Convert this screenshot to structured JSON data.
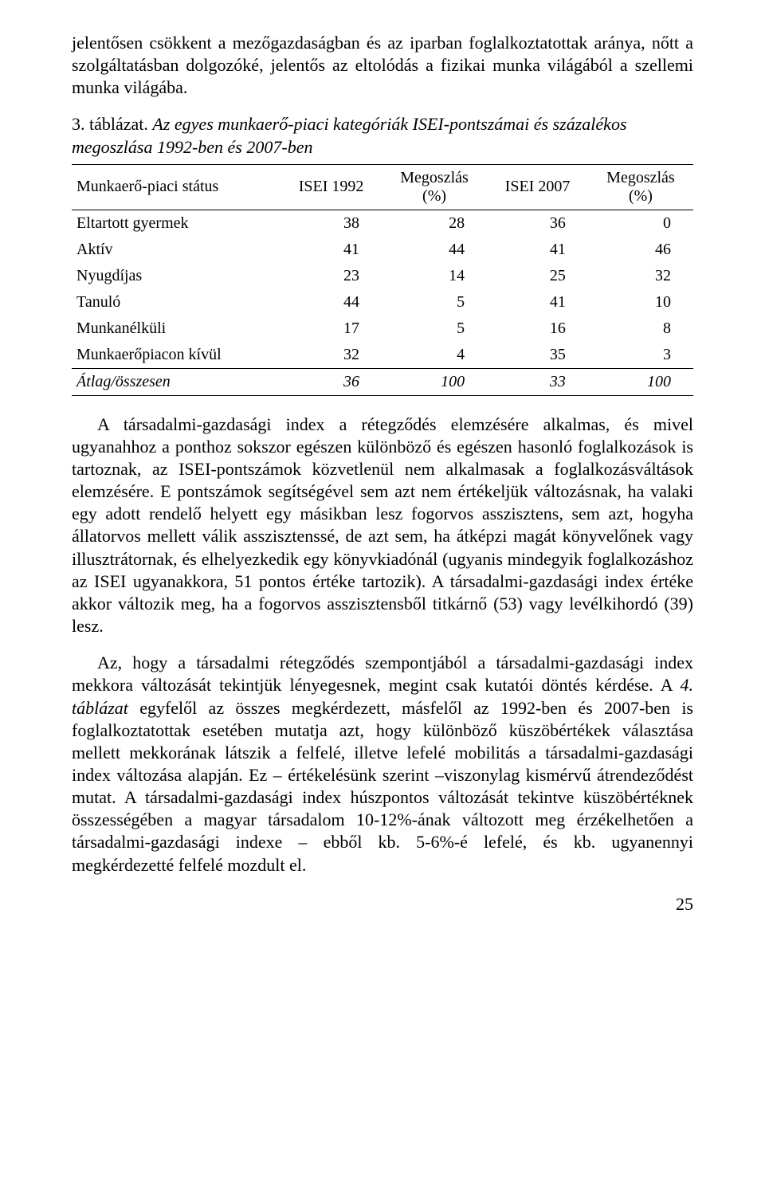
{
  "paragraphs": {
    "p1": "jelentősen csökkent a mezőgazdaságban és az iparban foglalkoztatottak aránya, nőtt a szolgáltatásban dolgozóké, jelentős az eltolódás a fizikai munka világából a szellemi munka világába.",
    "caption_label": "3. táblázat.",
    "caption_title": "Az egyes munkaerő-piaci kategóriák ISEI-pontszámai és százalékos megoszlása 1992-ben és 2007-ben",
    "p2": "A társadalmi-gazdasági index a rétegződés elemzésére alkalmas, és mivel ugyanahhoz a ponthoz sokszor egészen különböző és egészen hasonló foglalkozások is tartoznak, az ISEI-pontszámok közvetlenül nem alkalmasak a foglalkozásváltások elemzésére. E pontszámok segítségével sem azt nem értékeljük változásnak, ha valaki egy adott rendelő helyett egy másikban lesz fogorvos asszisztens, sem azt, hogyha állatorvos mellett válik asszisztenssé, de azt sem, ha átképzi magát könyvelőnek vagy illusztrátornak, és elhelyezkedik egy könyvkiadónál (ugyanis mindegyik foglalkozáshoz az ISEI ugyanakkora, 51 pontos értéke tartozik). A társadalmi-gazdasági index értéke akkor változik meg, ha a fogorvos asszisztensből titkárnő (53) vagy levélkihordó (39) lesz.",
    "p3_a": "Az, hogy a társadalmi rétegződés szempontjából a társadalmi-gazdasági index mekkora változását tekintjük lényegesnek, megint csak kutatói döntés kérdése. A ",
    "p3_em": "4. táblázat",
    "p3_b": " egyfelől az összes megkérdezett, másfelől az 1992-ben és 2007-ben is foglalkoztatottak esetében mutatja azt, hogy különböző küszöbértékek választása mellett mekkorának látszik a felfelé, illetve lefelé mobilitás a társadalmi-gazdasági index változása alapján. Ez – értékelésünk szerint –viszonylag kismérvű átrendeződést mutat. A társadalmi-gazdasági index húszpontos változását tekintve küszöbértéknek összességében a magyar társadalom 10-12%-ának változott meg érzékelhetően a társadalmi-gazdasági indexe – ebből kb. 5-6%-é lefelé, és kb. ugyanennyi megkérdezetté felfelé mozdult el."
  },
  "table": {
    "columns": [
      "Munkaerő-piaci státus",
      "ISEI 1992",
      "Megoszlás (%)",
      "ISEI 2007",
      "Megoszlás (%)"
    ],
    "col2_line1": "Megoszlás",
    "col2_line2": "(%)",
    "col4_line1": "Megoszlás",
    "col4_line2": "(%)",
    "rows": [
      {
        "label": "Eltartott gyermek",
        "c1": "38",
        "c2": "28",
        "c3": "36",
        "c4": "0"
      },
      {
        "label": "Aktív",
        "c1": "41",
        "c2": "44",
        "c3": "41",
        "c4": "46"
      },
      {
        "label": "Nyugdíjas",
        "c1": "23",
        "c2": "14",
        "c3": "25",
        "c4": "32"
      },
      {
        "label": "Tanuló",
        "c1": "44",
        "c2": "5",
        "c3": "41",
        "c4": "10"
      },
      {
        "label": "Munkanélküli",
        "c1": "17",
        "c2": "5",
        "c3": "16",
        "c4": "8"
      },
      {
        "label": "Munkaerőpiacon kívül",
        "c1": "32",
        "c2": "4",
        "c3": "35",
        "c4": "3"
      }
    ],
    "summary": {
      "label": "Átlag/összesen",
      "c1": "36",
      "c2": "100",
      "c3": "33",
      "c4": "100"
    },
    "header_align_first": "left",
    "header_align_rest": "center",
    "cell_align_first": "left",
    "cell_align_num": "right",
    "border_color": "#000000",
    "font_size_pt": 15,
    "background_color": "#ffffff"
  },
  "page_number": "25",
  "colors": {
    "text": "#000000",
    "background": "#ffffff",
    "rule": "#000000"
  },
  "typography": {
    "family": "Times",
    "body_size_pt": 16,
    "line_height": 1.28
  }
}
